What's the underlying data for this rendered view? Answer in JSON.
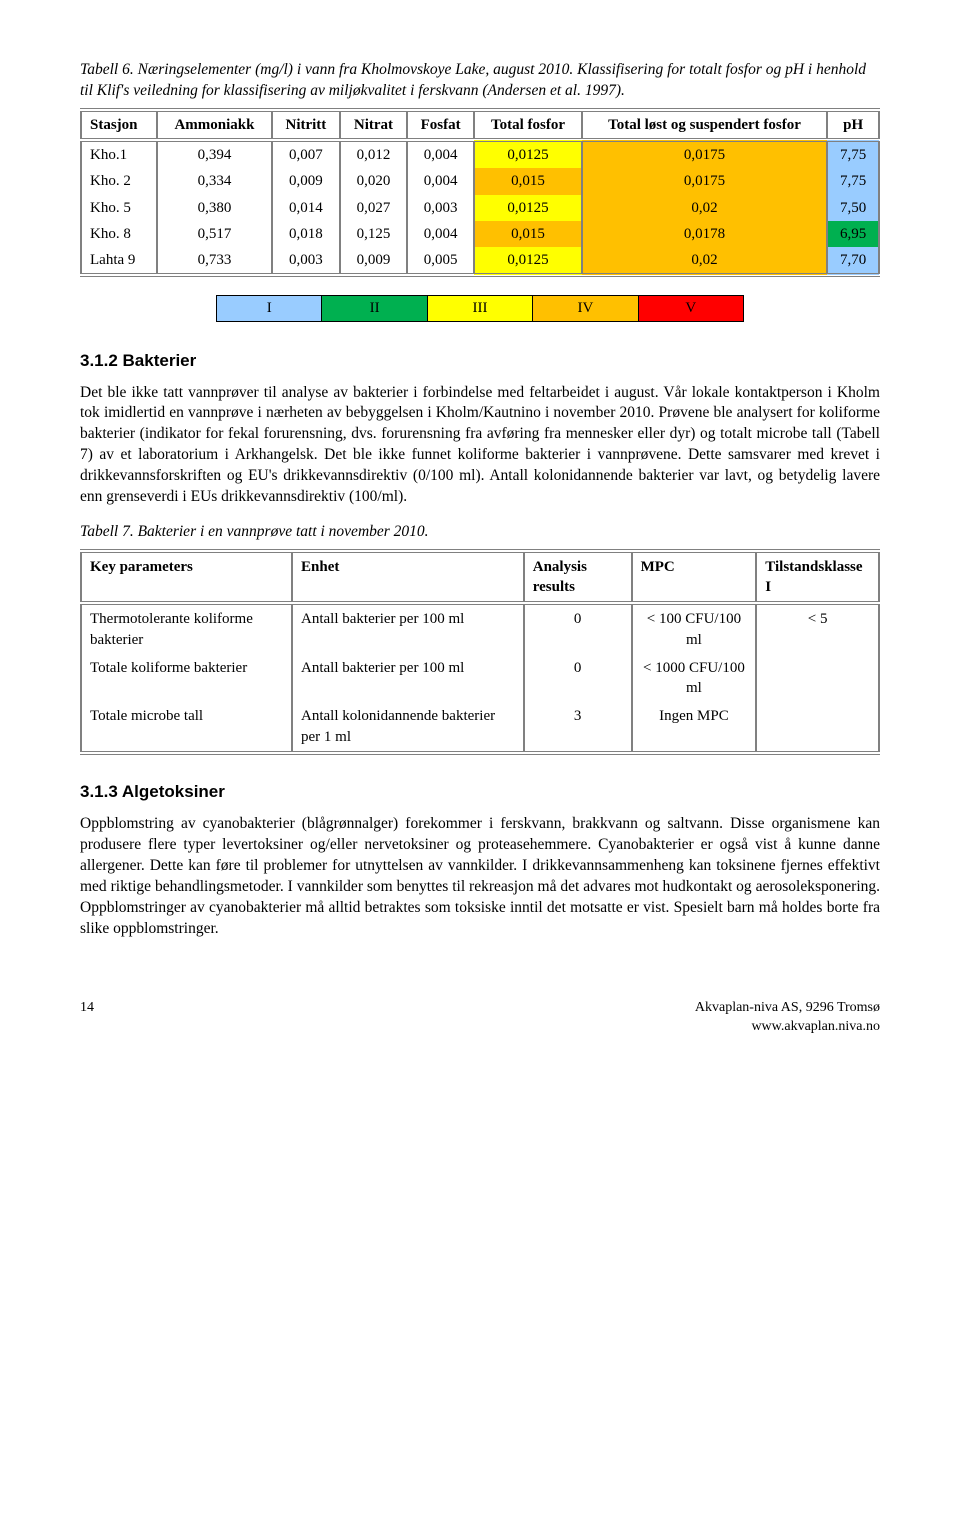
{
  "table6": {
    "caption": "Tabell 6. Næringselementer (mg/l) i vann fra Kholmovskoye Lake, august 2010. Klassifisering for totalt fosfor og pH i henhold til Klif's veiledning for klassifisering av miljøkvalitet i ferskvann (Andersen et al. 1997).",
    "headers": [
      "Stasjon",
      "Ammoniakk",
      "Nitritt",
      "Nitrat",
      "Fosfat",
      "Total fosfor",
      "Total løst og suspendert fosfor",
      "pH"
    ],
    "rows": [
      {
        "st": "Kho.1",
        "a": "0,394",
        "b": "0,007",
        "c": "0,012",
        "d": "0,004",
        "tf": "0,0125",
        "tl": "0,0175",
        "ph": "7,75",
        "tf_c": "#ffff00",
        "tl_c": "#ffc000",
        "ph_c": "#99ccff"
      },
      {
        "st": "Kho. 2",
        "a": "0,334",
        "b": "0,009",
        "c": "0,020",
        "d": "0,004",
        "tf": "0,015",
        "tl": "0,0175",
        "ph": "7,75",
        "tf_c": "#ffc000",
        "tl_c": "#ffc000",
        "ph_c": "#99ccff"
      },
      {
        "st": "Kho. 5",
        "a": "0,380",
        "b": "0,014",
        "c": "0,027",
        "d": "0,003",
        "tf": "0,0125",
        "tl": "0,02",
        "ph": "7,50",
        "tf_c": "#ffff00",
        "tl_c": "#ffc000",
        "ph_c": "#99ccff"
      },
      {
        "st": "Kho. 8",
        "a": "0,517",
        "b": "0,018",
        "c": "0,125",
        "d": "0,004",
        "tf": "0,015",
        "tl": "0,0178",
        "ph": "6,95",
        "tf_c": "#ffc000",
        "tl_c": "#ffc000",
        "ph_c": "#00b050"
      },
      {
        "st": "Lahta 9",
        "a": "0,733",
        "b": "0,003",
        "c": "0,009",
        "d": "0,005",
        "tf": "0,0125",
        "tl": "0,02",
        "ph": "7,70",
        "tf_c": "#ffff00",
        "tl_c": "#ffc000",
        "ph_c": "#99ccff"
      }
    ]
  },
  "class_strip": {
    "cells": [
      {
        "label": "I",
        "color": "#99ccff"
      },
      {
        "label": "II",
        "color": "#00b050"
      },
      {
        "label": "III",
        "color": "#ffff00"
      },
      {
        "label": "IV",
        "color": "#ffc000"
      },
      {
        "label": "V",
        "color": "#ff0000"
      }
    ]
  },
  "section_bakterier": {
    "heading": "3.1.2 Bakterier",
    "para": "Det ble ikke tatt vannprøver til analyse av bakterier i forbindelse med feltarbeidet i august. Vår lokale kontaktperson i Kholm tok imidlertid en vannprøve i nærheten av bebyggelsen i Kholm/Kautnino i november 2010. Prøvene ble analysert for koliforme bakterier (indikator for fekal forurensning, dvs. forurensning fra avføring fra mennesker eller dyr) og totalt microbe tall (Tabell 7) av et laboratorium i Arkhangelsk. Det ble ikke funnet koliforme bakterier i vannprøvene. Dette samsvarer med krevet i drikkevannsforskriften og EU's drikkevannsdirektiv (0/100 ml). Antall kolonidannende bakterier var lavt, og betydelig lavere enn grenseverdi i EUs drikkevannsdirektiv (100/ml)."
  },
  "table7": {
    "caption": "Tabell 7. Bakterier i en vannprøve tatt i november 2010.",
    "headers": [
      "Key parameters",
      "Enhet",
      "Analysis results",
      "MPC",
      "Tilstandsklasse I"
    ],
    "rows": [
      {
        "p": "Thermotolerante koliforme bakterier",
        "e": "Antall bakterier per 100 ml",
        "r": "0",
        "m": "< 100 CFU/100 ml",
        "t": "< 5"
      },
      {
        "p": "Totale koliforme bakterier",
        "e": "Antall bakterier per 100 ml",
        "r": "0",
        "m": "<  1000 CFU/100 ml",
        "t": ""
      },
      {
        "p": "Totale microbe tall",
        "e": "Antall kolonidannende bakterier per 1 ml",
        "r": "3",
        "m": "Ingen MPC",
        "t": ""
      }
    ]
  },
  "section_alge": {
    "heading": "3.1.3 Algetoksiner",
    "para": "Oppblomstring av cyanobakterier (blågrønnalger) forekommer i ferskvann, brakkvann og saltvann. Disse organismene kan produsere flere typer levertoksiner og/eller nervetoksiner og proteasehemmere. Cyanobakterier er også vist å kunne danne allergener. Dette kan føre til problemer for utnyttelsen av vannkilder. I drikkevannsammenheng kan toksinene fjernes effektivt med riktige behandlingsmetoder. I vannkilder som benyttes til rekreasjon må det advares mot hudkontakt og aerosoleksponering. Oppblomstringer av cyanobakterier må alltid betraktes som toksiske inntil det motsatte er vist. Spesielt barn må holdes borte fra slike oppblomstringer."
  },
  "footer": {
    "page": "14",
    "org1": "Akvaplan-niva AS, 9296 Tromsø",
    "org2": "www.akvaplan.niva.no"
  }
}
